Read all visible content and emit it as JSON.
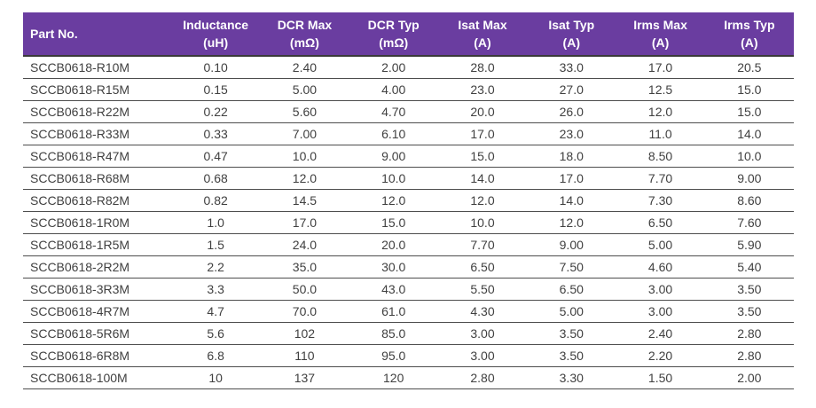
{
  "colors": {
    "header_background": "#6A3DA0",
    "header_text": "#FFFFFF",
    "body_text": "#404040",
    "row_divider": "#4D4D4D",
    "page_background": "#FFFFFF"
  },
  "table": {
    "columns": [
      {
        "label": "Part No.",
        "unit": ""
      },
      {
        "label": "Inductance",
        "unit": "(uH)"
      },
      {
        "label": "DCR Max",
        "unit": "(mΩ)"
      },
      {
        "label": "DCR Typ",
        "unit": "(mΩ)"
      },
      {
        "label": "Isat Max",
        "unit": "(A)"
      },
      {
        "label": "Isat Typ",
        "unit": "(A)"
      },
      {
        "label": "Irms Max",
        "unit": "(A)"
      },
      {
        "label": "Irms Typ",
        "unit": "(A)"
      }
    ],
    "rows": [
      [
        "SCCB0618-R10M",
        "0.10",
        "2.40",
        "2.00",
        "28.0",
        "33.0",
        "17.0",
        "20.5"
      ],
      [
        "SCCB0618-R15M",
        "0.15",
        "5.00",
        "4.00",
        "23.0",
        "27.0",
        "12.5",
        "15.0"
      ],
      [
        "SCCB0618-R22M",
        "0.22",
        "5.60",
        "4.70",
        "20.0",
        "26.0",
        "12.0",
        "15.0"
      ],
      [
        "SCCB0618-R33M",
        "0.33",
        "7.00",
        "6.10",
        "17.0",
        "23.0",
        "11.0",
        "14.0"
      ],
      [
        "SCCB0618-R47M",
        "0.47",
        "10.0",
        "9.00",
        "15.0",
        "18.0",
        "8.50",
        "10.0"
      ],
      [
        "SCCB0618-R68M",
        "0.68",
        "12.0",
        "10.0",
        "14.0",
        "17.0",
        "7.70",
        "9.00"
      ],
      [
        "SCCB0618-R82M",
        "0.82",
        "14.5",
        "12.0",
        "12.0",
        "14.0",
        "7.30",
        "8.60"
      ],
      [
        "SCCB0618-1R0M",
        "1.0",
        "17.0",
        "15.0",
        "10.0",
        "12.0",
        "6.50",
        "7.60"
      ],
      [
        "SCCB0618-1R5M",
        "1.5",
        "24.0",
        "20.0",
        "7.70",
        "9.00",
        "5.00",
        "5.90"
      ],
      [
        "SCCB0618-2R2M",
        "2.2",
        "35.0",
        "30.0",
        "6.50",
        "7.50",
        "4.60",
        "5.40"
      ],
      [
        "SCCB0618-3R3M",
        "3.3",
        "50.0",
        "43.0",
        "5.50",
        "6.50",
        "3.00",
        "3.50"
      ],
      [
        "SCCB0618-4R7M",
        "4.7",
        "70.0",
        "61.0",
        "4.30",
        "5.00",
        "3.00",
        "3.50"
      ],
      [
        "SCCB0618-5R6M",
        "5.6",
        "102",
        "85.0",
        "3.00",
        "3.50",
        "2.40",
        "2.80"
      ],
      [
        "SCCB0618-6R8M",
        "6.8",
        "110",
        "95.0",
        "3.00",
        "3.50",
        "2.20",
        "2.80"
      ],
      [
        "SCCB0618-100M",
        "10",
        "137",
        "120",
        "2.80",
        "3.30",
        "1.50",
        "2.00"
      ]
    ]
  }
}
